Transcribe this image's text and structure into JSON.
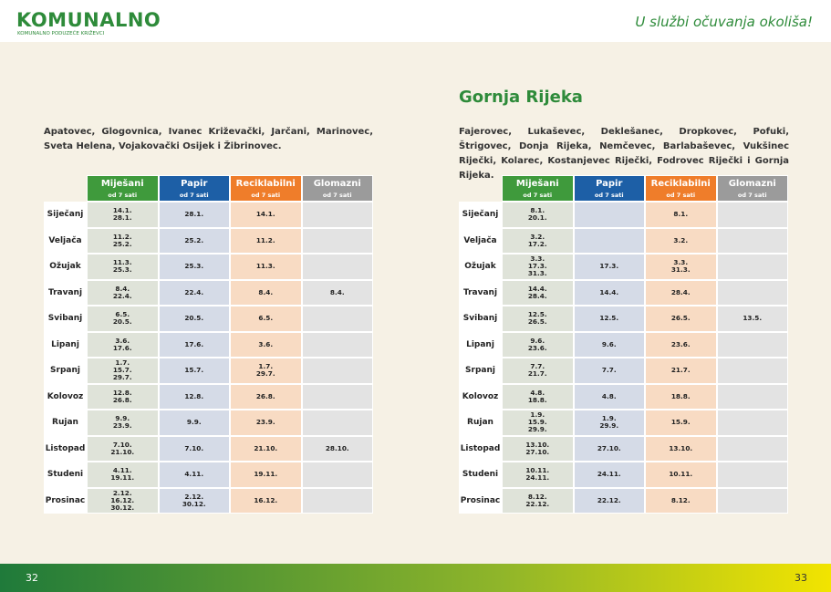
{
  "header": {
    "logo": "KOMUNALNO",
    "logo_sub": "KOMUNALNO PODUZEĆE KRIŽEVCI",
    "slogan": "U službi očuvanja okoliša!"
  },
  "left": {
    "description": "Apatovec, Glogovnica, Ivanec Križevački, Jarčani, Marinovec, Sveta Helena, Vojakovački Osijek i Žibrinovec.",
    "table": {
      "columns": [
        {
          "name": "Miješani",
          "time": "od 7 sati"
        },
        {
          "name": "Papir",
          "time": "od 7 sati"
        },
        {
          "name": "Reciklabilni",
          "time": "od 7 sati"
        },
        {
          "name": "Glomazni",
          "time": "od 7 sati"
        }
      ],
      "rows": [
        {
          "month": "Siječanj",
          "cells": [
            [
              "14.1.",
              "28.1."
            ],
            [
              "28.1."
            ],
            [
              "14.1."
            ],
            []
          ]
        },
        {
          "month": "Veljača",
          "cells": [
            [
              "11.2.",
              "25.2."
            ],
            [
              "25.2."
            ],
            [
              "11.2."
            ],
            []
          ]
        },
        {
          "month": "Ožujak",
          "cells": [
            [
              "11.3.",
              "25.3."
            ],
            [
              "25.3."
            ],
            [
              "11.3."
            ],
            []
          ]
        },
        {
          "month": "Travanj",
          "cells": [
            [
              "8.4.",
              "22.4."
            ],
            [
              "22.4."
            ],
            [
              "8.4."
            ],
            [
              "8.4."
            ]
          ]
        },
        {
          "month": "Svibanj",
          "cells": [
            [
              "6.5.",
              "20.5."
            ],
            [
              "20.5."
            ],
            [
              "6.5."
            ],
            []
          ]
        },
        {
          "month": "Lipanj",
          "cells": [
            [
              "3.6.",
              "17.6."
            ],
            [
              "17.6."
            ],
            [
              "3.6."
            ],
            []
          ]
        },
        {
          "month": "Srpanj",
          "cells": [
            [
              "1.7.",
              "15.7.",
              "29.7."
            ],
            [
              "15.7."
            ],
            [
              "1.7.",
              "29.7."
            ],
            []
          ]
        },
        {
          "month": "Kolovoz",
          "cells": [
            [
              "12.8.",
              "26.8."
            ],
            [
              "12.8."
            ],
            [
              "26.8."
            ],
            []
          ]
        },
        {
          "month": "Rujan",
          "cells": [
            [
              "9.9.",
              "23.9."
            ],
            [
              "9.9."
            ],
            [
              "23.9."
            ],
            []
          ]
        },
        {
          "month": "Listopad",
          "cells": [
            [
              "7.10.",
              "21.10."
            ],
            [
              "7.10."
            ],
            [
              "21.10."
            ],
            [
              "28.10."
            ]
          ]
        },
        {
          "month": "Studeni",
          "cells": [
            [
              "4.11.",
              "19.11."
            ],
            [
              "4.11."
            ],
            [
              "19.11."
            ],
            []
          ]
        },
        {
          "month": "Prosinac",
          "cells": [
            [
              "2.12.",
              "16.12.",
              "30.12."
            ],
            [
              "2.12.",
              "30.12."
            ],
            [
              "16.12."
            ],
            []
          ]
        }
      ]
    },
    "page_number": "32"
  },
  "right": {
    "title": "Gornja Rijeka",
    "description": "Fajerovec, Lukaševec, Deklešanec, Dropkovec, Pofuki, Štrigovec, Donja Rijeka, Nemčevec, Barlabaševec, Vukšinec Riječki, Kolarec, Kostanjevec Riječki, Fodrovec Riječki i Gornja Rijeka.",
    "table": {
      "columns": [
        {
          "name": "Miješani",
          "time": "od 7 sati"
        },
        {
          "name": "Papir",
          "time": "od 7 sati"
        },
        {
          "name": "Reciklabilni",
          "time": "od 7 sati"
        },
        {
          "name": "Glomazni",
          "time": "od 7 sati"
        }
      ],
      "rows": [
        {
          "month": "Siječanj",
          "cells": [
            [
              "8.1.",
              "20.1."
            ],
            [],
            [
              "8.1."
            ],
            []
          ]
        },
        {
          "month": "Veljača",
          "cells": [
            [
              "3.2.",
              "17.2."
            ],
            [],
            [
              "3.2."
            ],
            []
          ]
        },
        {
          "month": "Ožujak",
          "cells": [
            [
              "3.3.",
              "17.3.",
              "31.3."
            ],
            [
              "17.3."
            ],
            [
              "3.3.",
              "31.3."
            ],
            []
          ]
        },
        {
          "month": "Travanj",
          "cells": [
            [
              "14.4.",
              "28.4."
            ],
            [
              "14.4."
            ],
            [
              "28.4."
            ],
            []
          ]
        },
        {
          "month": "Svibanj",
          "cells": [
            [
              "12.5.",
              "26.5."
            ],
            [
              "12.5."
            ],
            [
              "26.5."
            ],
            [
              "13.5."
            ]
          ]
        },
        {
          "month": "Lipanj",
          "cells": [
            [
              "9.6.",
              "23.6."
            ],
            [
              "9.6."
            ],
            [
              "23.6."
            ],
            []
          ]
        },
        {
          "month": "Srpanj",
          "cells": [
            [
              "7.7.",
              "21.7."
            ],
            [
              "7.7."
            ],
            [
              "21.7."
            ],
            []
          ]
        },
        {
          "month": "Kolovoz",
          "cells": [
            [
              "4.8.",
              "18.8."
            ],
            [
              "4.8."
            ],
            [
              "18.8."
            ],
            []
          ]
        },
        {
          "month": "Rujan",
          "cells": [
            [
              "1.9.",
              "15.9.",
              "29.9."
            ],
            [
              "1.9.",
              "29.9."
            ],
            [
              "15.9."
            ],
            []
          ]
        },
        {
          "month": "Listopad",
          "cells": [
            [
              "13.10.",
              "27.10."
            ],
            [
              "27.10."
            ],
            [
              "13.10."
            ],
            []
          ]
        },
        {
          "month": "Studeni",
          "cells": [
            [
              "10.11.",
              "24.11."
            ],
            [
              "24.11."
            ],
            [
              "10.11."
            ],
            []
          ]
        },
        {
          "month": "Prosinac",
          "cells": [
            [
              "8.12.",
              "22.12."
            ],
            [
              "22.12."
            ],
            [
              "8.12."
            ],
            []
          ]
        }
      ]
    },
    "page_number": "33"
  }
}
